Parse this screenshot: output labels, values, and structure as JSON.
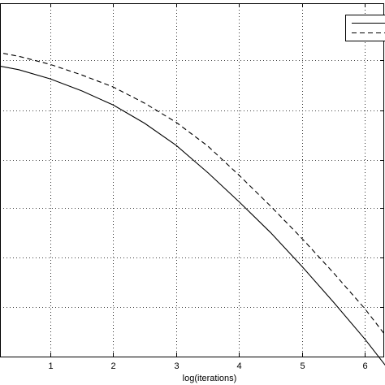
{
  "chart_data": {
    "type": "line",
    "title": "",
    "xlabel": "log(iterations)",
    "ylabel": "",
    "xlim": [
      0,
      6.5
    ],
    "x_ticks": [
      "1",
      "2",
      "3",
      "4",
      "5",
      "6"
    ],
    "x_tick_values": [
      1,
      2,
      3,
      4,
      5,
      6
    ],
    "grid": true,
    "grid_style": "dotted",
    "legend": {
      "placement": "top-right",
      "entries": [
        "",
        ""
      ]
    },
    "series": [
      {
        "style": "solid",
        "color": "#000000",
        "x": [
          0,
          0.5,
          1,
          1.5,
          2,
          2.5,
          3,
          3.5,
          4,
          4.5,
          5,
          5.5,
          6,
          6.45
        ],
        "y": [
          0.829,
          0.812,
          0.786,
          0.752,
          0.712,
          0.66,
          0.598,
          0.521,
          0.438,
          0.351,
          0.255,
          0.154,
          0.049,
          -0.054
        ]
      },
      {
        "style": "dashed",
        "color": "#000000",
        "x": [
          0,
          0.5,
          1,
          1.5,
          2,
          2.5,
          3,
          3.5,
          4,
          4.5,
          5,
          5.5,
          6,
          6.45
        ],
        "y": [
          0.867,
          0.85,
          0.827,
          0.797,
          0.763,
          0.717,
          0.663,
          0.596,
          0.513,
          0.426,
          0.334,
          0.237,
          0.135,
          0.031
        ]
      }
    ]
  }
}
